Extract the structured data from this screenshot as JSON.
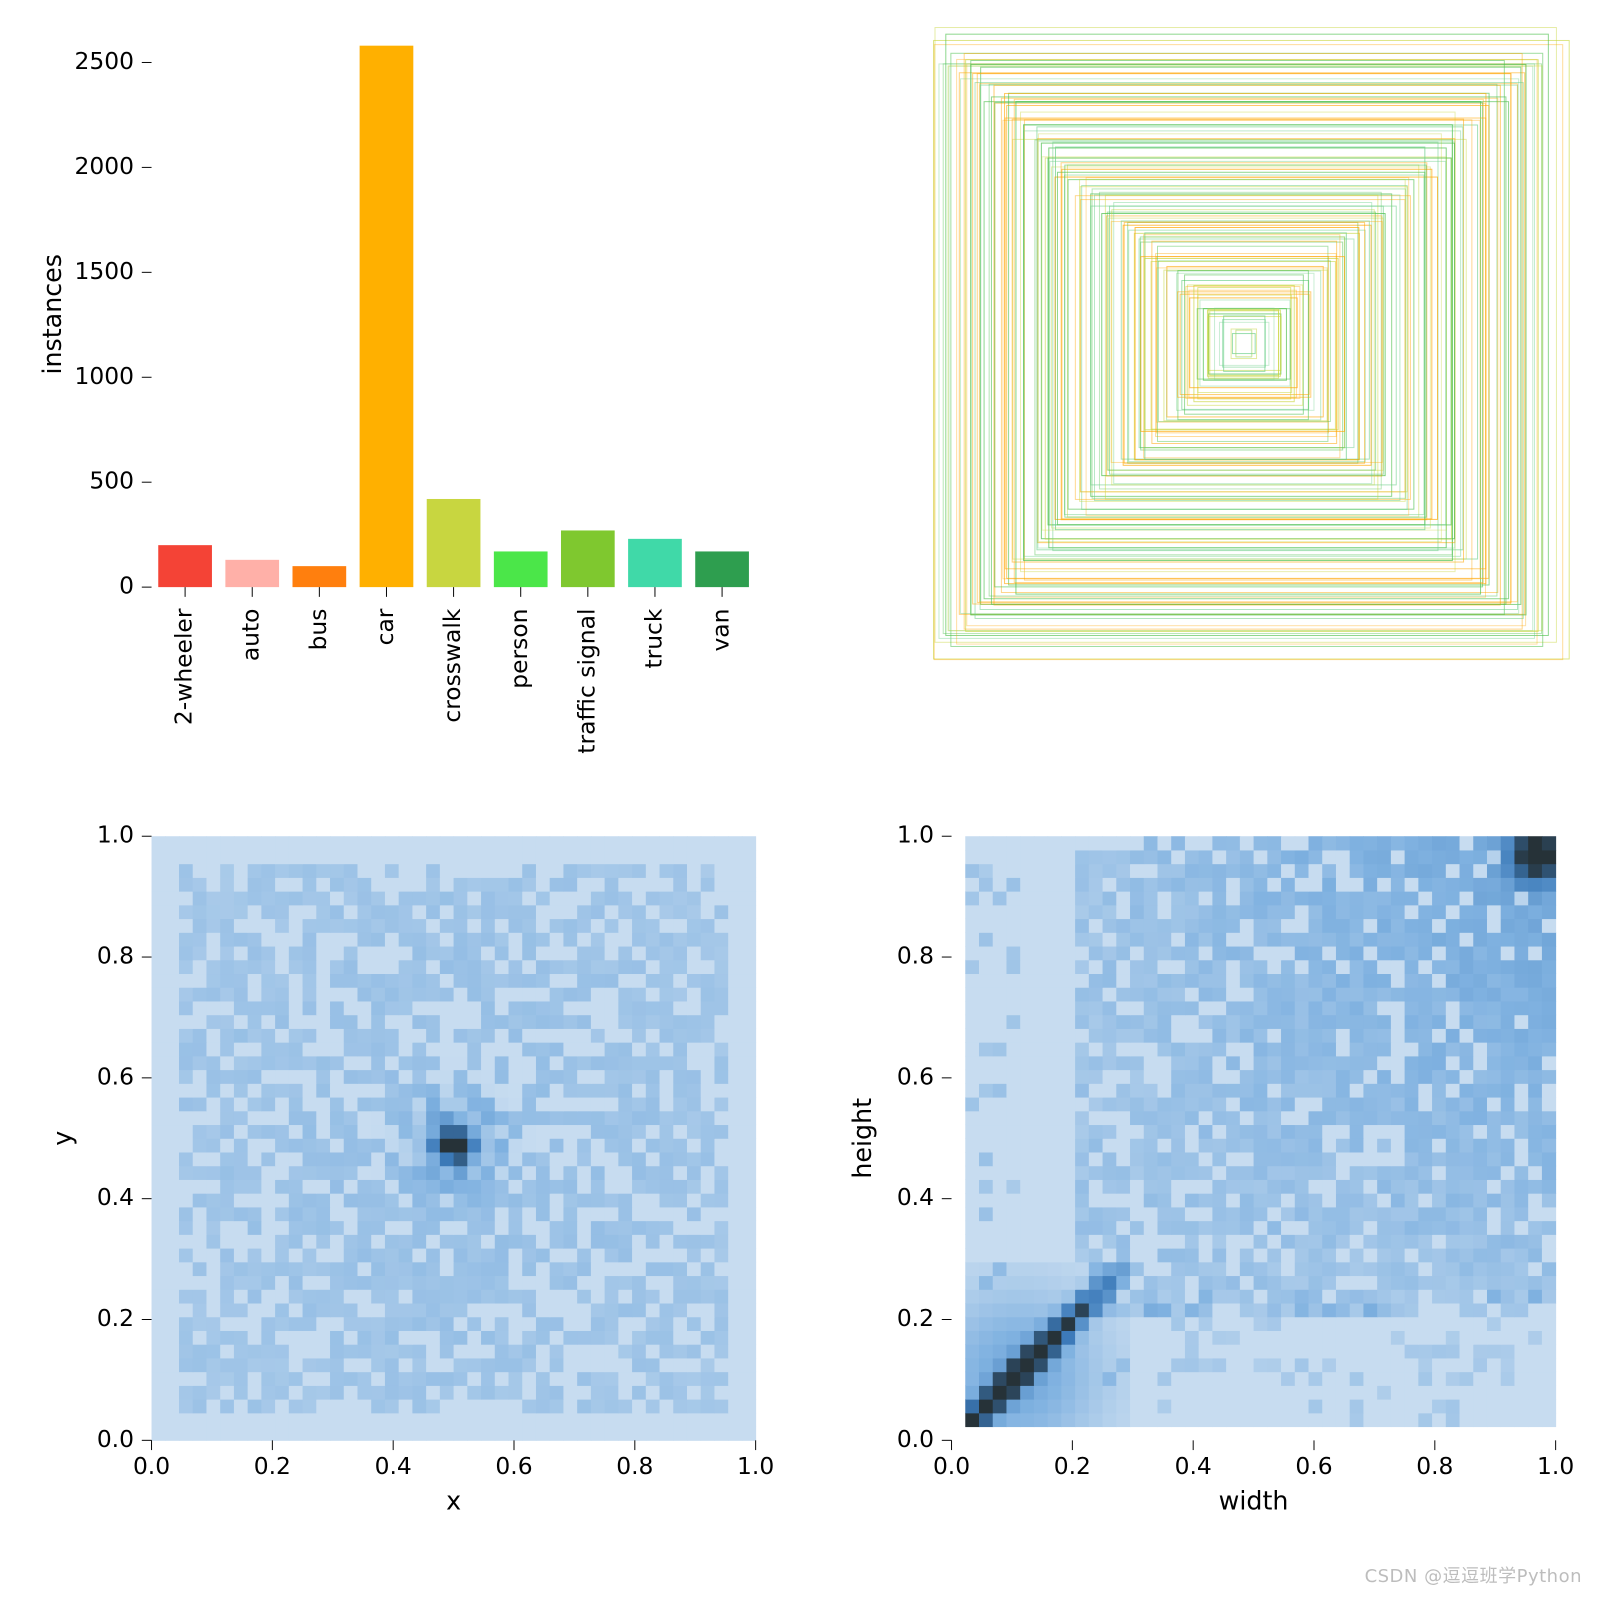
{
  "background_color": "#ffffff",
  "text_color": "#000000",
  "tick_fontsize_pt": 18,
  "axis_label_fontsize_pt": 20,
  "watermark": "CSDN @逗逗班学Python",
  "bar_chart": {
    "type": "bar",
    "ylabel": "instances",
    "categories": [
      "2-wheeler",
      "auto",
      "bus",
      "car",
      "crosswalk",
      "person",
      "traffic signal",
      "truck",
      "van"
    ],
    "values": [
      200,
      130,
      100,
      2580,
      420,
      170,
      270,
      230,
      170
    ],
    "bar_colors": [
      "#f44336",
      "#ffb0a8",
      "#ff7f0e",
      "#ffb000",
      "#c8d640",
      "#4be649",
      "#7fc82f",
      "#40d9a8",
      "#2e9e4f"
    ],
    "ylim": [
      0,
      2600
    ],
    "yticks": [
      0,
      500,
      1000,
      1500,
      2000,
      2500
    ],
    "bar_width": 0.8,
    "tick_color": "#000000",
    "label_rotation_deg": 90
  },
  "nested_boxes": {
    "type": "infographic",
    "note": "overlaid concentric boxes, mix of orange+green strokes",
    "colors": [
      "#ffa500",
      "#4bbf4b",
      "#c8d640",
      "#6fd08c"
    ],
    "count": 140,
    "bg": "#ffffff"
  },
  "xy_heatmap": {
    "type": "heatmap",
    "xlabel": "x",
    "ylabel": "y",
    "xlim": [
      0.0,
      1.0
    ],
    "ylim": [
      0.0,
      1.0
    ],
    "xticks": [
      0.0,
      0.2,
      0.4,
      0.6,
      0.8,
      1.0
    ],
    "yticks": [
      0.0,
      0.2,
      0.4,
      0.6,
      0.8,
      1.0
    ],
    "grid_n": 44,
    "palette_low": "#c7dcf0",
    "palette_mid": "#7fb1e0",
    "palette_darker": "#3b79b8",
    "palette_peak": "#263238",
    "empty_color": "#ffffff",
    "peak_center": [
      0.5,
      0.49
    ]
  },
  "wh_heatmap": {
    "type": "heatmap",
    "xlabel": "width",
    "ylabel": "height",
    "xlim": [
      0.0,
      1.0
    ],
    "ylim": [
      0.0,
      1.0
    ],
    "xticks": [
      0.0,
      0.2,
      0.4,
      0.6,
      0.8,
      1.0
    ],
    "yticks": [
      0.0,
      0.2,
      0.4,
      0.6,
      0.8,
      1.0
    ],
    "grid_n": 44,
    "palette_low": "#c7dcf0",
    "palette_mid": "#7fb1e0",
    "palette_darker": "#3b79b8",
    "palette_peak": "#263238",
    "empty_color": "#ffffff",
    "diagonal_hotspot_start": [
      0.02,
      0.02
    ],
    "diagonal_hotspot_end": [
      0.22,
      0.22
    ],
    "corner_hotspot": [
      0.98,
      0.98
    ]
  }
}
